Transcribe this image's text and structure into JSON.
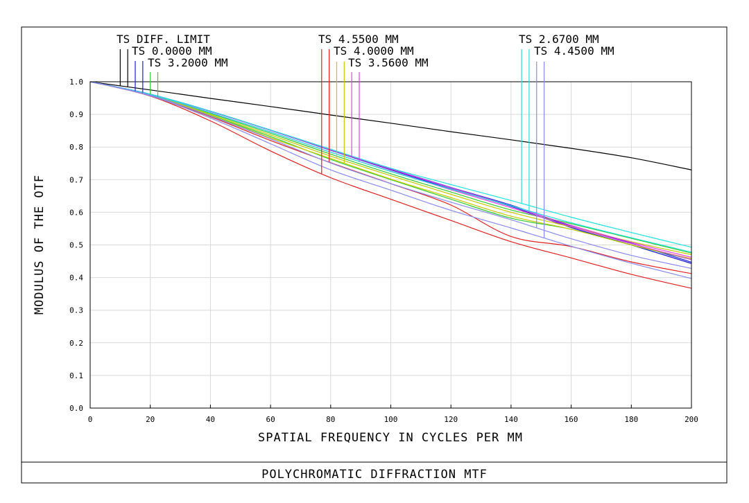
{
  "chart_data": {
    "type": "line",
    "title": "POLYCHROMATIC DIFFRACTION MTF",
    "xlabel": "SPATIAL FREQUENCY IN CYCLES PER MM",
    "ylabel": "MODULUS OF THE OTF",
    "xlim": [
      0,
      200
    ],
    "ylim": [
      0,
      1
    ],
    "x_ticks": [
      "0",
      "20",
      "40",
      "60",
      "80",
      "100",
      "120",
      "140",
      "160",
      "180",
      "200"
    ],
    "y_ticks": [
      "0.0",
      "0.1",
      "0.2",
      "0.3",
      "0.4",
      "0.5",
      "0.6",
      "0.7",
      "0.8",
      "0.9",
      "1.0"
    ],
    "grid": true,
    "x": [
      0,
      20,
      40,
      60,
      80,
      100,
      120,
      140,
      160,
      180,
      200
    ],
    "legend_labels": [
      "TS DIFF. LIMIT",
      "TS 0.0000 MM",
      "TS 3.2000 MM",
      "TS 4.5500 MM",
      "TS 4.0000 MM",
      "TS 3.5600 MM",
      "TS 2.6700 MM",
      "TS 4.4500 MM"
    ],
    "series": [
      {
        "name": "TS DIFF. LIMIT",
        "color": "#000000",
        "curves": [
          [
            1.0,
            0.975,
            0.949,
            0.924,
            0.898,
            0.873,
            0.847,
            0.822,
            0.796,
            0.767,
            0.73
          ]
        ]
      },
      {
        "name": "TS 0.0000 MM",
        "color": "#1d1dd6",
        "curves": [
          [
            1.0,
            0.962,
            0.91,
            0.852,
            0.793,
            0.733,
            0.676,
            0.622,
            0.557,
            0.505,
            0.447
          ],
          [
            1.0,
            0.962,
            0.909,
            0.851,
            0.79,
            0.73,
            0.672,
            0.618,
            0.553,
            0.5,
            0.443
          ]
        ]
      },
      {
        "name": "TS 3.2000 MM",
        "color": "#33cc33",
        "curves": [
          [
            1.0,
            0.961,
            0.903,
            0.842,
            0.778,
            0.718,
            0.662,
            0.607,
            0.565,
            0.52,
            0.475
          ],
          [
            1.0,
            0.959,
            0.897,
            0.832,
            0.762,
            0.7,
            0.64,
            0.582,
            0.548,
            0.5,
            0.455
          ]
        ]
      },
      {
        "name": "TS 4.5500 MM",
        "color": "#e02020",
        "curves": [
          [
            1.0,
            0.956,
            0.88,
            0.788,
            0.706,
            0.64,
            0.575,
            0.51,
            0.46,
            0.41,
            0.367
          ],
          [
            1.0,
            0.958,
            0.893,
            0.82,
            0.752,
            0.688,
            0.622,
            0.526,
            0.495,
            0.448,
            0.412
          ]
        ]
      },
      {
        "name": "TS 4.0000 MM",
        "color": "#c8c800",
        "curves": [
          [
            1.0,
            0.96,
            0.9,
            0.837,
            0.772,
            0.712,
            0.655,
            0.6,
            0.555,
            0.51,
            0.47
          ],
          [
            1.0,
            0.958,
            0.896,
            0.828,
            0.765,
            0.702,
            0.645,
            0.588,
            0.548,
            0.5,
            0.458
          ]
        ]
      },
      {
        "name": "TS 3.5600 MM",
        "color": "#e040e0",
        "curves": [
          [
            1.0,
            0.962,
            0.909,
            0.851,
            0.791,
            0.732,
            0.675,
            0.62,
            0.56,
            0.508,
            0.462
          ],
          [
            1.0,
            0.961,
            0.905,
            0.846,
            0.784,
            0.726,
            0.669,
            0.614,
            0.556,
            0.504,
            0.455
          ]
        ]
      },
      {
        "name": "TS 2.6700 MM",
        "color": "#20e0e0",
        "curves": [
          [
            1.0,
            0.962,
            0.91,
            0.852,
            0.793,
            0.735,
            0.685,
            0.636,
            0.585,
            0.538,
            0.493
          ],
          [
            1.0,
            0.961,
            0.905,
            0.846,
            0.784,
            0.725,
            0.671,
            0.62,
            0.568,
            0.522,
            0.478
          ]
        ]
      },
      {
        "name": "TS 4.4500 MM",
        "color": "#8888ee",
        "curves": [
          [
            1.0,
            0.959,
            0.895,
            0.825,
            0.751,
            0.688,
            0.631,
            0.577,
            0.519,
            0.468,
            0.428
          ],
          [
            1.0,
            0.957,
            0.889,
            0.81,
            0.73,
            0.668,
            0.606,
            0.552,
            0.496,
            0.444,
            0.397
          ]
        ]
      }
    ],
    "markers": [
      {
        "series": "TS DIFF. LIMIT",
        "x": [
          10,
          12.5
        ]
      },
      {
        "series": "TS 0.0000 MM",
        "x": [
          15,
          17.5
        ]
      },
      {
        "series": "TS 3.2000 MM",
        "x": [
          20,
          22.5
        ]
      },
      {
        "series": "TS 4.5500 MM",
        "x": [
          77,
          79.5
        ]
      },
      {
        "series": "TS 4.0000 MM",
        "x": [
          82,
          84.5
        ]
      },
      {
        "series": "TS 3.5600 MM",
        "x": [
          87,
          89.5
        ]
      },
      {
        "series": "TS 2.6700 MM",
        "x": [
          143.5,
          146
        ]
      },
      {
        "series": "TS 4.4500 MM",
        "x": [
          148.5,
          151
        ]
      }
    ]
  }
}
